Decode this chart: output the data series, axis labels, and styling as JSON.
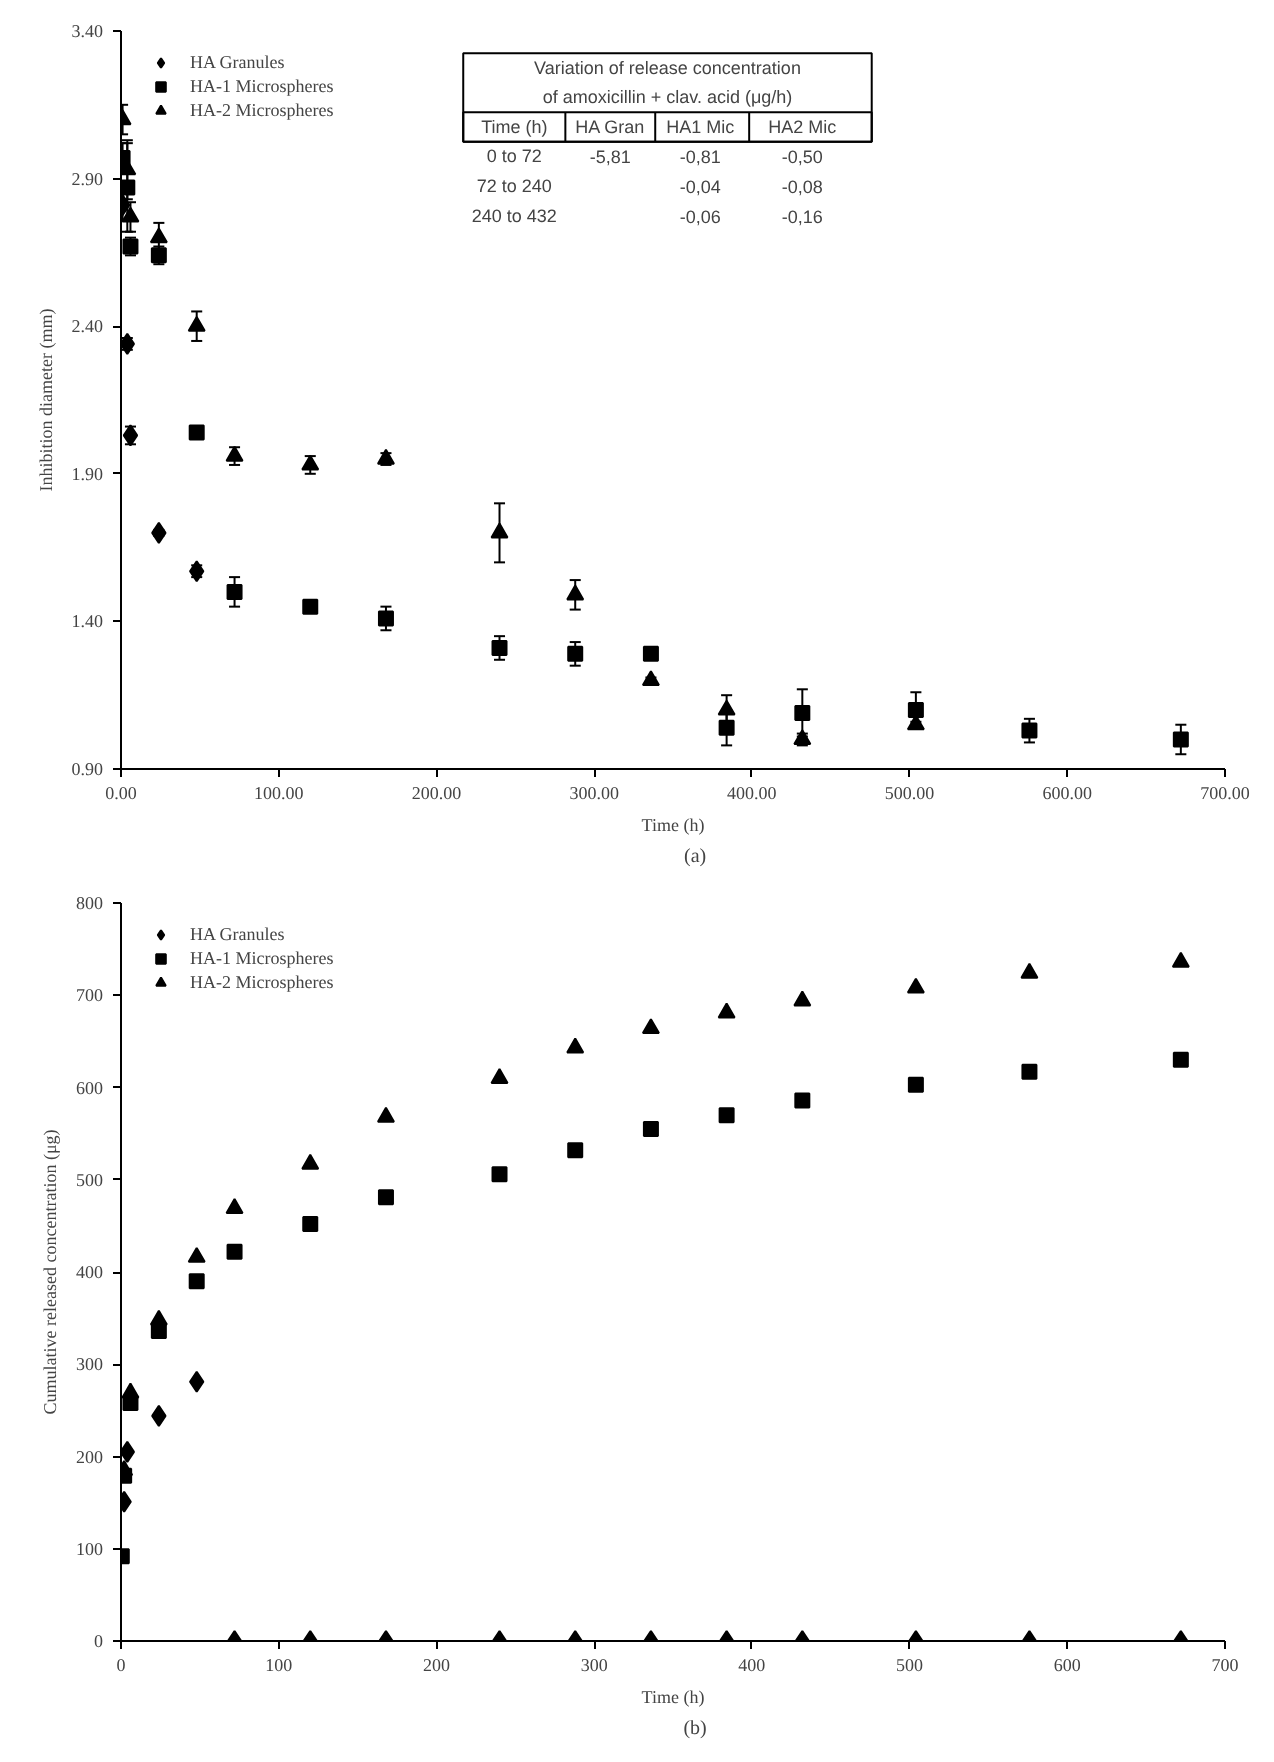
{
  "chart_data": [
    {
      "type": "scatter",
      "ylabel": "Inhibition diameter (mm)",
      "xlabel": "Time (h)",
      "xlim": [
        0,
        700
      ],
      "ylim": [
        0.9,
        3.4
      ],
      "xticks": [
        {
          "value": 0,
          "label": "0.00"
        },
        {
          "value": 100,
          "label": "100.00"
        },
        {
          "value": 200,
          "label": "200.00"
        },
        {
          "value": 300,
          "label": "300.00"
        },
        {
          "value": 400,
          "label": "400.00"
        },
        {
          "value": 500,
          "label": "500.00"
        },
        {
          "value": 600,
          "label": "600.00"
        },
        {
          "value": 700,
          "label": "700.00"
        }
      ],
      "yticks": [
        {
          "value": 0.9,
          "label": "0.90"
        },
        {
          "value": 1.4,
          "label": "1.40"
        },
        {
          "value": 1.9,
          "label": "1.90"
        },
        {
          "value": 2.4,
          "label": "2.40"
        },
        {
          "value": 2.9,
          "label": "2.90"
        },
        {
          "value": 3.4,
          "label": "3.40"
        }
      ],
      "grid": false,
      "legend": "top left",
      "series": [
        {
          "name": "HA Granules",
          "color": "#000000",
          "marker": "diamond",
          "x": [
            1,
            2,
            4,
            6,
            24,
            48
          ],
          "values": [
            2.81,
            null,
            2.34,
            2.03,
            1.7,
            1.57
          ],
          "errors": [
            0.05,
            null,
            0.02,
            0.03,
            0.01,
            0.02
          ]
        },
        {
          "name": "HA-1 Microspheres",
          "color": "#000000",
          "marker": "square",
          "x": [
            1,
            4,
            6,
            24,
            48,
            72,
            120,
            168,
            240,
            288,
            336,
            384,
            432,
            504,
            576,
            672
          ],
          "values": [
            2.97,
            2.87,
            2.67,
            2.64,
            2.04,
            1.5,
            1.45,
            1.41,
            1.31,
            1.29,
            1.29,
            1.04,
            1.09,
            1.1,
            1.03,
            1.0
          ],
          "errors": [
            0.05,
            0.15,
            0.03,
            0.03,
            0.02,
            0.05,
            0.02,
            0.04,
            0.04,
            0.04,
            0.02,
            0.06,
            0.08,
            0.06,
            0.04,
            0.05
          ]
        },
        {
          "name": "HA-2 Microspheres",
          "color": "#000000",
          "marker": "triangle",
          "x": [
            1,
            4,
            6,
            24,
            48,
            72,
            120,
            168,
            240,
            288,
            336,
            384,
            432,
            504
          ],
          "values": [
            3.1,
            2.93,
            2.77,
            2.7,
            2.4,
            1.96,
            1.93,
            1.95,
            1.7,
            1.49,
            1.2,
            1.1,
            1.0,
            1.05
          ],
          "errors": [
            0.05,
            0.1,
            0.05,
            0.05,
            0.05,
            0.03,
            0.03,
            0.02,
            0.1,
            0.05,
            0.01,
            0.05,
            0.02,
            0.01
          ]
        }
      ],
      "annotations": [
        "(a)",
        "Variation of release concentration of amoxicillin + clav. acid (μg/h)",
        "Time (h)",
        "HA Gran",
        "HA1 Mic",
        "HA2 Mic",
        "0 to 72",
        "-5,81",
        "-0,81",
        "-0,50",
        "72 to 240",
        "-0,04",
        "-0,08",
        "240 to 432",
        "-0,06",
        "-0,16"
      ]
    },
    {
      "type": "scatter",
      "ylabel": "Cumulative released concentration (μg)",
      "xlabel": "Time (h)",
      "xlim": [
        0,
        700
      ],
      "ylim": [
        0,
        800
      ],
      "xticks": [
        0,
        100,
        200,
        300,
        400,
        500,
        600,
        700
      ],
      "yticks": [
        0,
        100,
        200,
        300,
        400,
        500,
        600,
        700,
        800
      ],
      "grid": false,
      "legend": "top left",
      "series": [
        {
          "name": "HA Granules",
          "color": "#000000",
          "marker": "diamond",
          "x": [
            2,
            4,
            24,
            48,
            72,
            120,
            168,
            240,
            288,
            336,
            384,
            432,
            504,
            576,
            672
          ],
          "values": [
            151,
            205,
            244,
            281,
            0,
            0,
            0,
            0,
            0,
            0,
            0,
            0,
            0,
            0,
            0
          ]
        },
        {
          "name": "HA-1 Microspheres",
          "color": "#000000",
          "marker": "square",
          "x": [
            0.5,
            2,
            6,
            24,
            48,
            72,
            120,
            168,
            240,
            288,
            336,
            384,
            432,
            504,
            576,
            672
          ],
          "values": [
            92,
            179,
            258,
            336,
            390,
            422,
            452,
            481,
            506,
            532,
            555,
            570,
            586,
            603,
            617,
            630
          ]
        },
        {
          "name": "HA-2 Microspheres",
          "color": "#000000",
          "marker": "triangle",
          "x": [
            2,
            6,
            24,
            48,
            72,
            120,
            168,
            240,
            288,
            336,
            384,
            432,
            504,
            576,
            672
          ],
          "values": [
            185,
            269,
            348,
            416,
            469,
            517,
            568,
            610,
            643,
            664,
            681,
            694,
            708,
            724,
            736
          ]
        }
      ],
      "annotations": [
        "(b)"
      ]
    }
  ]
}
